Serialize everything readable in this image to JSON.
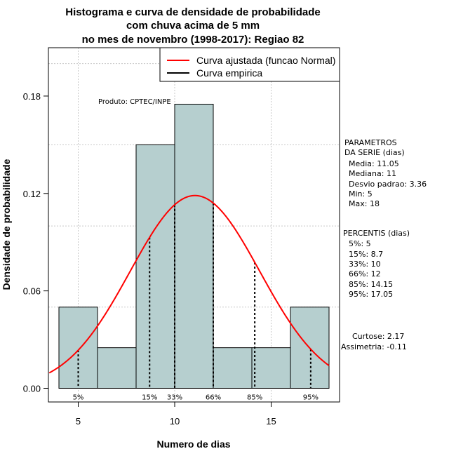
{
  "chart_data": {
    "type": "histogram",
    "title_lines": [
      "Histograma e curva de densidade de probabilidade",
      "com chuva acima de 5 mm",
      "no mes de novembro (1998-2017): Regiao 82"
    ],
    "xlabel": "Numero de dias",
    "ylabel": "Densidade de probabilidade",
    "xlim": [
      3.5,
      18.5
    ],
    "ylim": [
      0,
      0.21
    ],
    "x_ticks": [
      5,
      10,
      15
    ],
    "y_ticks": [
      0.0,
      0.06,
      0.12,
      0.18
    ],
    "y_tick_labels": [
      "0.00",
      "0.06",
      "0.12",
      "0.18"
    ],
    "grid_x": [
      5,
      10,
      15
    ],
    "grid_y": [
      0.05,
      0.1,
      0.15,
      0.2
    ],
    "bins": [
      {
        "start": 4,
        "end": 6,
        "density": 0.05
      },
      {
        "start": 6,
        "end": 8,
        "density": 0.025
      },
      {
        "start": 8,
        "end": 10,
        "density": 0.15
      },
      {
        "start": 10,
        "end": 12,
        "density": 0.175
      },
      {
        "start": 12,
        "end": 14,
        "density": 0.025
      },
      {
        "start": 14,
        "end": 16,
        "density": 0.025
      },
      {
        "start": 16,
        "end": 18,
        "density": 0.05
      }
    ],
    "normal_fit": {
      "mean": 11.05,
      "sd": 3.36,
      "color": "#ff0000",
      "from": 3.5,
      "to": 18
    }
  },
  "legend": {
    "items": [
      {
        "label": "Curva ajustada (funcao Normal)",
        "color": "#ff0000"
      },
      {
        "label": "Curva empirica",
        "color": "#000000"
      }
    ]
  },
  "product_label": "Produto: CPTEC/INPE",
  "bar_fill": "#b6cfcf",
  "percentile_marks": [
    {
      "label": "5%",
      "value": 5
    },
    {
      "label": "15%",
      "value": 8.7
    },
    {
      "label": "33%",
      "value": 10
    },
    {
      "label": "66%",
      "value": 12
    },
    {
      "label": "85%",
      "value": 14.15
    },
    {
      "label": "95%",
      "value": 17.05
    }
  ],
  "parametros": {
    "heading_lines": [
      "PARAMETROS",
      "DA SERIE (dias)"
    ],
    "items": [
      "Media: 11.05",
      "Mediana: 11",
      "Desvio padrao: 3.36",
      "Min: 5",
      "Max: 18"
    ]
  },
  "percentis": {
    "heading": "PERCENTIS (dias)",
    "items": [
      "5%: 5",
      "15%: 8.7",
      "33%: 10",
      "66%: 12",
      "85%: 14.15",
      "95%: 17.05"
    ]
  },
  "shape_stats": {
    "items": [
      "Curtose: 2.17",
      "Assimetria: -0.11"
    ]
  }
}
